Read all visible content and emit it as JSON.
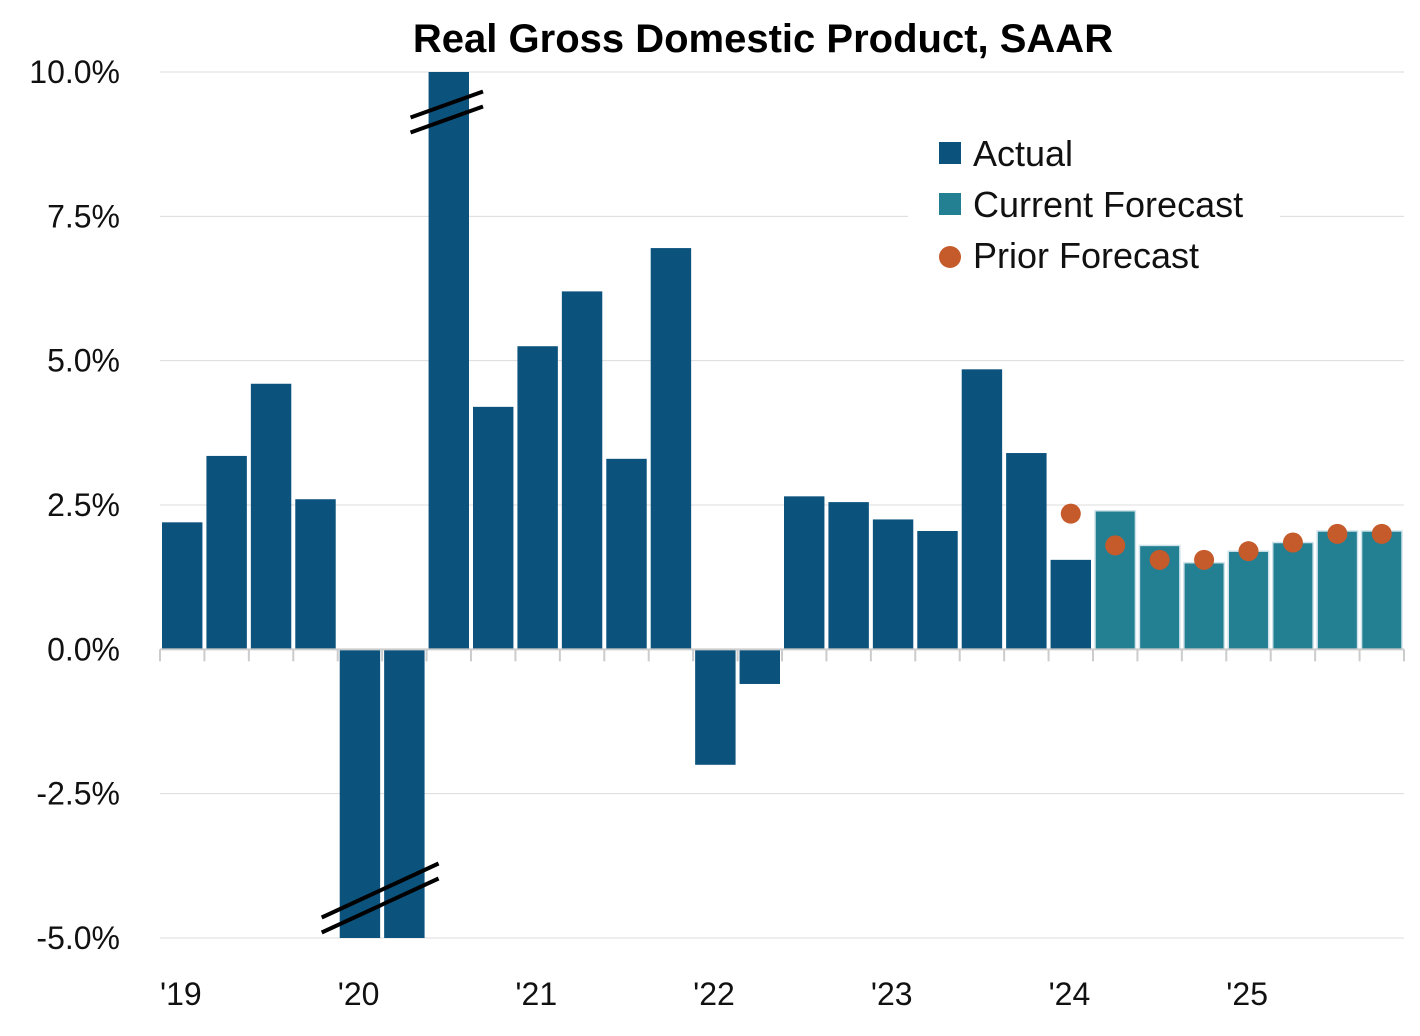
{
  "chart_data": {
    "type": "bar",
    "title": "Real Gross Domestic Product, SAAR",
    "ylim": [
      -5.0,
      10.0
    ],
    "yticks": [
      10.0,
      7.5,
      5.0,
      2.5,
      0.0,
      -2.5,
      -5.0
    ],
    "ytick_labels": [
      "10.0%",
      "7.5%",
      "5.0%",
      "2.5%",
      "0.0%",
      "-2.5%",
      "-5.0%"
    ],
    "year_labels": [
      "'19",
      "'20",
      "'21",
      "'22",
      "'23",
      "'24",
      "'25"
    ],
    "x": [
      "2019Q1",
      "2019Q2",
      "2019Q3",
      "2019Q4",
      "2020Q1",
      "2020Q2",
      "2020Q3",
      "2020Q4",
      "2021Q1",
      "2021Q2",
      "2021Q3",
      "2021Q4",
      "2022Q1",
      "2022Q2",
      "2022Q3",
      "2022Q4",
      "2023Q1",
      "2023Q2",
      "2023Q3",
      "2023Q4",
      "2024Q1",
      "2024Q2",
      "2024Q3",
      "2024Q4",
      "2025Q1",
      "2025Q2",
      "2025Q3",
      "2025Q4"
    ],
    "grid": true,
    "legend_placement": "top-right",
    "series": [
      {
        "name": "Actual",
        "type": "bar",
        "color": "#0b527d",
        "values": [
          2.2,
          3.35,
          4.6,
          2.6,
          -5.0,
          -5.0,
          10.0,
          4.2,
          5.25,
          6.2,
          3.3,
          6.95,
          -2.0,
          -0.6,
          2.65,
          2.55,
          2.25,
          2.05,
          4.85,
          3.4,
          1.55,
          null,
          null,
          null,
          null,
          null,
          null,
          null
        ],
        "truncated": [
          false,
          false,
          false,
          false,
          true,
          true,
          true,
          false,
          false,
          false,
          false,
          false,
          false,
          false,
          false,
          false,
          false,
          false,
          false,
          false,
          false,
          false,
          false,
          false,
          false,
          false,
          false,
          false
        ]
      },
      {
        "name": "Current Forecast",
        "type": "bar",
        "color": "#237f92",
        "values": [
          null,
          null,
          null,
          null,
          null,
          null,
          null,
          null,
          null,
          null,
          null,
          null,
          null,
          null,
          null,
          null,
          null,
          null,
          null,
          null,
          null,
          2.4,
          1.8,
          1.5,
          1.7,
          1.85,
          2.05,
          2.05
        ]
      },
      {
        "name": "Prior Forecast",
        "type": "dot",
        "color": "#c55a2a",
        "values": [
          null,
          null,
          null,
          null,
          null,
          null,
          null,
          null,
          null,
          null,
          null,
          null,
          null,
          null,
          null,
          null,
          null,
          null,
          null,
          null,
          2.35,
          1.8,
          1.55,
          1.55,
          1.7,
          1.85,
          2.0,
          2.0
        ]
      }
    ]
  }
}
